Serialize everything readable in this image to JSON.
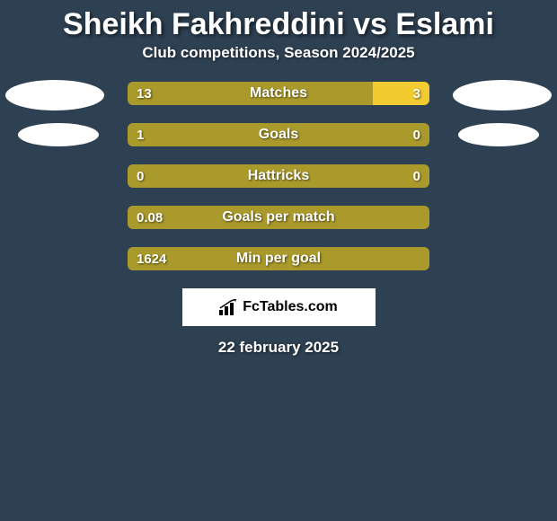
{
  "title": "Sheikh Fakhreddini vs Eslami",
  "subtitle": "Club competitions, Season 2024/2025",
  "branding": {
    "text": "FcTables.com"
  },
  "date": "22 february 2025",
  "colors": {
    "left_bar": "#aa9a2b",
    "right_bar": "#f2cb30",
    "bg": "#2e4153",
    "ellipse": "#ffffff"
  },
  "rows": [
    {
      "label": "Matches",
      "left": "13",
      "right": "3",
      "left_num": 13,
      "right_num": 3,
      "show_left_ellipse": true,
      "show_right_ellipse": true,
      "ellipse_small": false
    },
    {
      "label": "Goals",
      "left": "1",
      "right": "0",
      "left_num": 1,
      "right_num": 0,
      "show_left_ellipse": true,
      "show_right_ellipse": true,
      "ellipse_small": true
    },
    {
      "label": "Hattricks",
      "left": "0",
      "right": "0",
      "left_num": 0,
      "right_num": 0,
      "show_left_ellipse": false,
      "show_right_ellipse": false,
      "ellipse_small": false
    },
    {
      "label": "Goals per match",
      "left": "0.08",
      "right": "",
      "left_num": 0.08,
      "right_num": 0,
      "show_left_ellipse": false,
      "show_right_ellipse": false,
      "ellipse_small": false
    },
    {
      "label": "Min per goal",
      "left": "1624",
      "right": "",
      "left_num": 1624,
      "right_num": 0,
      "show_left_ellipse": false,
      "show_right_ellipse": false,
      "ellipse_small": false
    }
  ]
}
